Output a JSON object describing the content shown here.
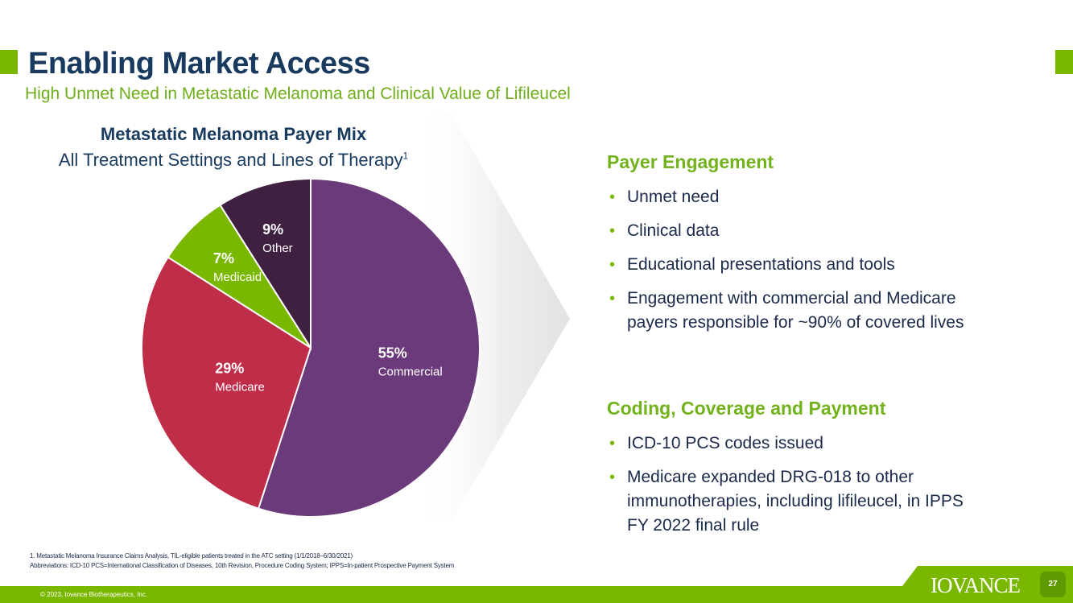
{
  "title": "Enabling Market Access",
  "subtitle": "High Unmet Need in Metastatic Melanoma and Clinical Value of Lifileucel",
  "chart_data": {
    "type": "pie",
    "title": "Metastatic Melanoma Payer Mix",
    "subtitle": "All Treatment Settings and Lines of Therapy",
    "subtitle_sup": "1",
    "slices": [
      {
        "label": "Commercial",
        "value": 55,
        "display": "55%",
        "color": "#6b3a7a"
      },
      {
        "label": "Medicare",
        "value": 29,
        "display": "29%",
        "color": "#c02d48"
      },
      {
        "label": "Medicaid",
        "value": 7,
        "display": "7%",
        "color": "#7ab800"
      },
      {
        "label": "Other",
        "value": 9,
        "display": "9%",
        "color": "#3f2041"
      }
    ]
  },
  "payer_engagement": {
    "heading": "Payer Engagement",
    "bullets": [
      "Unmet need",
      "Clinical data",
      "Educational presentations and tools",
      "Engagement with commercial and Medicare payers responsible for ~90% of covered lives"
    ]
  },
  "coding": {
    "heading": "Coding, Coverage and Payment",
    "bullets": [
      "ICD-10 PCS codes issued",
      "Medicare expanded DRG-018 to other immunotherapies, including lifileucel, in IPPS FY 2022 final rule"
    ]
  },
  "footnotes": {
    "line1": "1. Metastatic Melanoma Insurance Claims Analysis, TIL-eligible patients treated in the ATC setting (1/1/2018–6/30/2021)",
    "line2": "Abbreviations: ICD-10 PCS=International Classification of Diseases, 10th Revision, Procedure Coding System; IPPS=In-patient Prospective Payment System"
  },
  "footer": {
    "copyright": "© 2023, Iovance Biotherapeutics, Inc.",
    "logo": "IOVANCE",
    "page_number": "27"
  },
  "colors": {
    "accent": "#7ab800",
    "title": "#173a5e"
  }
}
